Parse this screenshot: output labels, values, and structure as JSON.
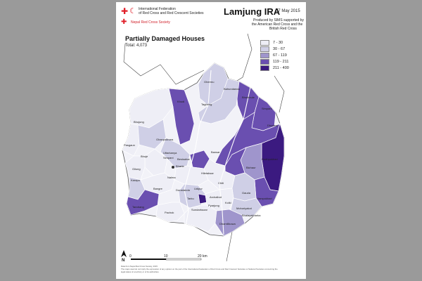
{
  "header": {
    "ifrc_line1": "International Federation",
    "ifrc_line2": "of Red Cross and Red Crescent Societies",
    "nrcs": "Nepal Red Cross Society",
    "map_title": "Lamjung IRA",
    "date": "07 May 2015",
    "produced_line1": "Produced by SIMS supported by",
    "produced_line2": "the American Red Cross and the",
    "produced_line3": "British Red Cross"
  },
  "map": {
    "subtitle": "Partially Damaged Houses",
    "total": "Total: 4,073"
  },
  "legend": [
    {
      "label": "7 - 30",
      "color": "#eeeef6"
    },
    {
      "label": "30 - 67",
      "color": "#cfcfe6"
    },
    {
      "label": "67 - 119",
      "color": "#9f95cc"
    },
    {
      "label": "119 - 211",
      "color": "#6a4fb0"
    },
    {
      "label": "211 - 400",
      "color": "#3b1a80"
    }
  ],
  "places": {
    "ghermu": "Ghermu",
    "bahundanda": "Bahundanda",
    "bhulbhule": "Bhulbhule",
    "taghring": "Taghring",
    "khudi": "Khudi",
    "simpani": "Simpani",
    "dhodeni": "Dhodeni",
    "bhujung": "Bhujung",
    "pasgaun": "Pasgaun",
    "ghanpokhara": "Ghanpokhara",
    "bhoje": "Bhoje",
    "uttarkanya": "Uttarkanya",
    "simpani2": "Simpani",
    "besisahar": "Besisahar",
    "bharte": "Bharte",
    "nalma": "Nalma",
    "gilung": "Gilung",
    "bangre": "Bangre",
    "duradanda": "Duradanda",
    "chiti": "Chiti",
    "udipur": "Udipur",
    "archalbot": "Archalbot",
    "gauda": "Gauda",
    "dudhpokhari": "Dudhpokhari",
    "ilampokhari": "Ilampokhari",
    "bichaur": "Bichaur",
    "tarku": "Tarku",
    "pyarjung": "Pyarjung",
    "kolki": "Kolki",
    "hiletaksar": "Hiletaksar",
    "mohoriyakot": "Mohoriyakot",
    "bhalayakharka": "Bhalayakharka",
    "dhamilikuwa": "Dhamilikuwa",
    "sundarbazar": "Sundarbazar",
    "karapu": "Karapu",
    "pachok": "Pachok",
    "bansar": "Bansar",
    "tandrang": "Tandrang"
  },
  "scale": {
    "s0": "0",
    "s10": "10",
    "s20": "20 km",
    "north": "N"
  },
  "footer": {
    "line1": "Data from Nepal Red Cross Society, 2015",
    "line2": "The maps used do not imply the expression of any opinion on the part of the International Federation of Red Cross and Red Crescent Societies or National Societies concerning the",
    "line3": "legal status of a territory or of its authorities."
  }
}
